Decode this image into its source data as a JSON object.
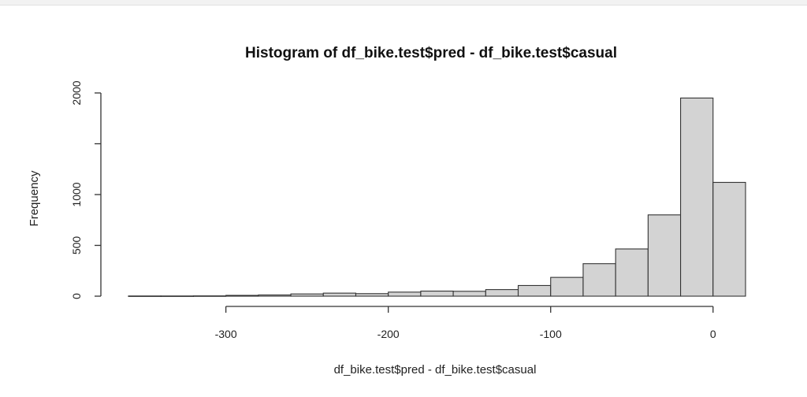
{
  "chart_data": {
    "type": "bar",
    "title": "Histogram of df_bike.test$pred - df_bike.test$casual",
    "xlabel": "df_bike.test$pred - df_bike.test$casual",
    "ylabel": "Frequency",
    "bin_width": 20,
    "bins": [
      {
        "start": -360,
        "end": -340,
        "count": 2
      },
      {
        "start": -340,
        "end": -320,
        "count": 2
      },
      {
        "start": -320,
        "end": -300,
        "count": 3
      },
      {
        "start": -300,
        "end": -280,
        "count": 8
      },
      {
        "start": -280,
        "end": -260,
        "count": 12
      },
      {
        "start": -260,
        "end": -240,
        "count": 22
      },
      {
        "start": -240,
        "end": -220,
        "count": 30
      },
      {
        "start": -220,
        "end": -200,
        "count": 25
      },
      {
        "start": -200,
        "end": -180,
        "count": 40
      },
      {
        "start": -180,
        "end": -160,
        "count": 50
      },
      {
        "start": -160,
        "end": -140,
        "count": 48
      },
      {
        "start": -140,
        "end": -120,
        "count": 65
      },
      {
        "start": -120,
        "end": -100,
        "count": 105
      },
      {
        "start": -100,
        "end": -80,
        "count": 185
      },
      {
        "start": -80,
        "end": -60,
        "count": 320
      },
      {
        "start": -60,
        "end": -40,
        "count": 465
      },
      {
        "start": -40,
        "end": -20,
        "count": 800
      },
      {
        "start": -20,
        "end": 0,
        "count": 1950
      },
      {
        "start": 0,
        "end": 20,
        "count": 1120
      }
    ],
    "xlim": [
      -360,
      20
    ],
    "ylim": [
      0,
      2000
    ],
    "x_ticks": [
      -300,
      -200,
      -100,
      0
    ],
    "x_tick_labels": [
      "-300",
      "-200",
      "-100",
      "0"
    ],
    "y_ticks": [
      0,
      500,
      1000,
      1500,
      2000
    ],
    "y_tick_labels": [
      "0",
      "500",
      "1000",
      "",
      "2000"
    ],
    "grid": false,
    "legend": "none"
  },
  "colors": {
    "bar_fill": "#d3d3d3",
    "bar_stroke": "#333333"
  }
}
